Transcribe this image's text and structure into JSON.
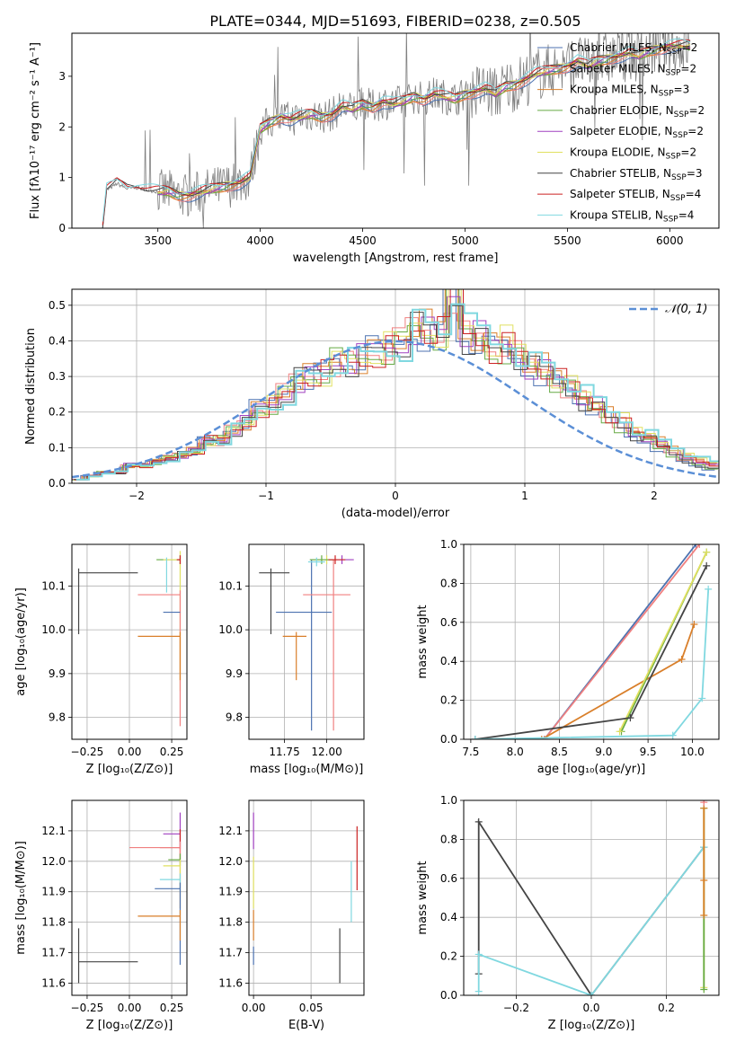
{
  "figure_title": "PLATE=0344, MJD=51693, FIBERID=0238, z=0.505",
  "colors": {
    "chabrier_miles": "#4c72b0",
    "salpeter_miles": "#f08080",
    "kroupa_miles": "#d97f2a",
    "chabrier_elodie": "#66aa44",
    "salpeter_elodie": "#a040c0",
    "kroupa_elodie": "#e0e060",
    "chabrier_stelib": "#444444",
    "salpeter_stelib": "#cc2222",
    "kroupa_stelib": "#80d8e0",
    "data": "#808080",
    "gaussian": "#5b8fd6"
  },
  "chart_data": [
    {
      "id": "spectrum",
      "type": "line",
      "title": "PLATE=0344, MJD=51693, FIBERID=0238, z=0.505",
      "xlabel": "wavelength [Angstrom, rest frame]",
      "ylabel": "Flux [fλ10⁻¹⁷ erg cm⁻² s⁻¹ A⁻¹]",
      "xlim": [
        3080,
        6240
      ],
      "ylim": [
        0,
        3.85
      ],
      "xticks": [
        "3500",
        "4000",
        "4500",
        "5000",
        "5500",
        "6000"
      ],
      "yticks": [
        "0",
        "1",
        "2",
        "3"
      ],
      "grid": false,
      "legend_position": "top-right",
      "legend": [
        {
          "label": "Chabrier MILES, N",
          "sub": "SSP",
          "suffix": "=2"
        },
        {
          "label": "Salpeter MILES, N",
          "sub": "SSP",
          "suffix": "=2"
        },
        {
          "label": "Kroupa MILES, N",
          "sub": "SSP",
          "suffix": "=3"
        },
        {
          "label": "Chabrier ELODIE, N",
          "sub": "SSP",
          "suffix": "=2"
        },
        {
          "label": "Salpeter ELODIE, N",
          "sub": "SSP",
          "suffix": "=2"
        },
        {
          "label": "Kroupa ELODIE, N",
          "sub": "SSP",
          "suffix": "=2"
        },
        {
          "label": "Chabrier STELIB, N",
          "sub": "SSP",
          "suffix": "=3"
        },
        {
          "label": "Salpeter STELIB, N",
          "sub": "SSP",
          "suffix": "=4"
        },
        {
          "label": "Kroupa STELIB, N",
          "sub": "SSP",
          "suffix": "=4"
        }
      ],
      "continuum": {
        "x": [
          3230,
          3250,
          3280,
          3300,
          3350,
          3400,
          3450,
          3500,
          3550,
          3600,
          3650,
          3700,
          3750,
          3800,
          3850,
          3900,
          3950,
          4000,
          4050,
          4100,
          4150,
          4200,
          4250,
          4300,
          4350,
          4400,
          4450,
          4500,
          4550,
          4600,
          4650,
          4700,
          4750,
          4800,
          4850,
          4900,
          4950,
          5000,
          5050,
          5100,
          5150,
          5200,
          5250,
          5300,
          5350,
          5400,
          5450,
          5500,
          5550,
          5600,
          5650,
          5700,
          5750,
          5800,
          5850,
          5900,
          5950,
          6000,
          6050,
          6100
        ],
        "y": [
          0,
          0.75,
          0.82,
          0.88,
          0.78,
          0.8,
          0.75,
          0.72,
          0.72,
          0.65,
          0.65,
          0.7,
          0.75,
          0.8,
          0.85,
          0.9,
          1.0,
          1.95,
          2.1,
          2.2,
          2.15,
          2.2,
          2.25,
          2.2,
          2.25,
          2.4,
          2.35,
          2.45,
          2.4,
          2.5,
          2.45,
          2.5,
          2.6,
          2.55,
          2.65,
          2.6,
          2.55,
          2.65,
          2.7,
          2.75,
          2.65,
          2.8,
          2.85,
          2.95,
          3.05,
          3.1,
          3.15,
          3.2,
          3.3,
          3.2,
          3.3,
          3.35,
          3.4,
          3.45,
          3.4,
          3.5,
          3.55,
          3.6,
          3.6,
          3.6
        ]
      }
    },
    {
      "id": "residuals",
      "type": "histogram",
      "xlabel": "(data-model)/error",
      "ylabel": "Normed distribution",
      "xlim": [
        -2.5,
        2.5
      ],
      "ylim": [
        0,
        0.545
      ],
      "xticks": [
        "−2",
        "−1",
        "0",
        "1",
        "2"
      ],
      "yticks": [
        "0.0",
        "0.1",
        "0.2",
        "0.3",
        "0.4",
        "0.5"
      ],
      "grid": true,
      "legend_position": "top-right",
      "legend": [
        {
          "label": "𝒩(0, 1)"
        }
      ],
      "bin_width": 0.1,
      "data_hist": [
        0.01,
        0.02,
        0.03,
        0.03,
        0.05,
        0.05,
        0.06,
        0.07,
        0.08,
        0.09,
        0.12,
        0.12,
        0.15,
        0.17,
        0.21,
        0.22,
        0.25,
        0.29,
        0.3,
        0.31,
        0.34,
        0.34,
        0.35,
        0.37,
        0.38,
        0.39,
        0.42,
        0.41,
        0.4,
        0.52,
        0.4,
        0.39,
        0.36,
        0.37,
        0.34,
        0.31,
        0.3,
        0.27,
        0.25,
        0.22,
        0.2,
        0.17,
        0.15,
        0.12,
        0.11,
        0.09,
        0.07,
        0.05,
        0.04,
        0.03
      ],
      "gaussian": {
        "mu": 0,
        "sigma": 1
      }
    },
    {
      "id": "age_vs_Z",
      "type": "scatter",
      "xlabel": "Z [log₁₀(Z/Z⊙)]",
      "ylabel": "age  [log₁₀(age/yr)]",
      "xlim": [
        -0.34,
        0.34
      ],
      "ylim": [
        9.75,
        10.195
      ],
      "xticks": [
        "−0.25",
        "0.00",
        "0.25"
      ],
      "yticks": [
        "9.8",
        "9.9",
        "10.0",
        "10.1"
      ],
      "points": [
        {
          "series": "chabrier_stelib",
          "x": -0.3,
          "y": 10.13,
          "xerr": [
            0,
            0.35
          ],
          "yerr": [
            0.14,
            0.01
          ]
        },
        {
          "series": "chabrier_elodie",
          "x": 0.3,
          "y": 10.16,
          "xerr": [
            0.14,
            0
          ],
          "yerr": [
            0.01,
            0.01
          ]
        },
        {
          "series": "kroupa_elodie",
          "x": 0.3,
          "y": 10.16,
          "xerr": [
            0.1,
            0
          ],
          "yerr": [
            0.3,
            0.02
          ]
        },
        {
          "series": "kroupa_stelib",
          "x": 0.22,
          "y": 10.155,
          "xerr": [
            0,
            0
          ],
          "yerr": [
            0.07,
            0.01
          ]
        },
        {
          "series": "salpeter_miles",
          "x": 0.3,
          "y": 10.08,
          "xerr": [
            0.25,
            0
          ],
          "yerr": [
            0.3,
            0.01
          ]
        },
        {
          "series": "chabrier_miles",
          "x": 0.3,
          "y": 10.04,
          "xerr": [
            0.1,
            0
          ],
          "yerr": [
            0,
            0
          ]
        },
        {
          "series": "kroupa_miles",
          "x": 0.3,
          "y": 9.985,
          "xerr": [
            0.25,
            0
          ],
          "yerr": [
            0.1,
            0.01
          ]
        },
        {
          "series": "salpeter_stelib",
          "x": 0.3,
          "y": 10.16,
          "xerr": [
            0.02,
            0
          ],
          "yerr": [
            0.01,
            0.01
          ]
        }
      ]
    },
    {
      "id": "age_vs_mass",
      "type": "scatter",
      "xlabel": "mass [log₁₀(M/M⊙)]",
      "ylabel": "",
      "xlim": [
        11.54,
        12.22
      ],
      "ylim": [
        9.75,
        10.195
      ],
      "xticks": [
        "11.75",
        "12.00"
      ],
      "yticks": [
        "9.8",
        "9.9",
        "10.0",
        "10.1"
      ],
      "points": [
        {
          "series": "chabrier_stelib",
          "x": 11.67,
          "y": 10.13,
          "xerr": [
            0.07,
            0.11
          ],
          "yerr": [
            0.14,
            0.01
          ]
        },
        {
          "series": "kroupa_miles",
          "x": 11.82,
          "y": 9.985,
          "xerr": [
            0.08,
            0.06
          ],
          "yerr": [
            0.1,
            0.01
          ]
        },
        {
          "series": "chabrier_miles",
          "x": 11.91,
          "y": 10.04,
          "xerr": [
            0.21,
            0.12
          ],
          "yerr": [
            0.27,
            0.12
          ]
        },
        {
          "series": "salpeter_miles",
          "x": 12.04,
          "y": 10.08,
          "xerr": [
            0.18,
            0.1
          ],
          "yerr": [
            0.31,
            0.08
          ]
        },
        {
          "series": "salpeter_elodie",
          "x": 12.09,
          "y": 10.16,
          "xerr": [
            0.1,
            0.07
          ],
          "yerr": [
            0.01,
            0.01
          ]
        },
        {
          "series": "kroupa_elodie",
          "x": 12.0,
          "y": 10.16,
          "xerr": [
            0.09,
            0.06
          ],
          "yerr": [
            0.01,
            0.01
          ]
        },
        {
          "series": "chabrier_elodie",
          "x": 11.97,
          "y": 10.16,
          "xerr": [
            0.07,
            0.07
          ],
          "yerr": [
            0.01,
            0.01
          ]
        },
        {
          "series": "kroupa_stelib",
          "x": 11.94,
          "y": 10.155,
          "xerr": [
            0.05,
            0.05
          ],
          "yerr": [
            0.01,
            0.01
          ]
        },
        {
          "series": "salpeter_stelib",
          "x": 12.05,
          "y": 10.16,
          "xerr": [
            0.04,
            0.06
          ],
          "yerr": [
            0.01,
            0.01
          ]
        }
      ]
    },
    {
      "id": "mass_weight_vs_age",
      "type": "line",
      "xlabel": "age  [log₁₀(age/yr)]",
      "ylabel": "mass weight",
      "xlim": [
        7.42,
        10.3
      ],
      "ylim": [
        0,
        1
      ],
      "xticks": [
        "7.5",
        "8.0",
        "8.5",
        "9.0",
        "9.5",
        "10.0"
      ],
      "yticks": [
        "0.0",
        "0.2",
        "0.4",
        "0.6",
        "0.8",
        "1.0"
      ],
      "grid": true,
      "series": [
        {
          "name": "chabrier_miles",
          "x": [
            8.33,
            10.04
          ],
          "y": [
            0,
            1.0
          ]
        },
        {
          "name": "salpeter_miles",
          "x": [
            8.33,
            10.08
          ],
          "y": [
            0,
            1.0
          ]
        },
        {
          "name": "kroupa_miles",
          "x": [
            8.3,
            9.88,
            10.02
          ],
          "y": [
            0,
            0.41,
            0.59
          ]
        },
        {
          "name": "chabrier_elodie",
          "x": [
            9.2,
            10.16
          ],
          "y": [
            0.04,
            0.96
          ]
        },
        {
          "name": "kroupa_elodie",
          "x": [
            9.18,
            10.16
          ],
          "y": [
            0.04,
            0.96
          ]
        },
        {
          "name": "chabrier_stelib",
          "x": [
            7.55,
            9.3,
            10.16
          ],
          "y": [
            0,
            0.11,
            0.89
          ]
        },
        {
          "name": "kroupa_stelib",
          "x": [
            7.55,
            9.78,
            10.11,
            10.18
          ],
          "y": [
            0,
            0.02,
            0.21,
            0.77
          ]
        }
      ]
    },
    {
      "id": "mass_vs_Z",
      "type": "scatter",
      "xlabel": "Z [log₁₀(Z/Z⊙)]",
      "ylabel": "mass [log₁₀(M/M⊙)]",
      "xlim": [
        -0.34,
        0.34
      ],
      "ylim": [
        11.56,
        12.2
      ],
      "xticks": [
        "−0.25",
        "0.00",
        "0.25"
      ],
      "yticks": [
        "11.6",
        "11.7",
        "11.8",
        "11.9",
        "12.0",
        "12.1"
      ],
      "points": [
        {
          "series": "chabrier_stelib",
          "x": -0.3,
          "y": 11.67,
          "xerr": [
            0,
            0.35
          ],
          "yerr": [
            0.07,
            0.11
          ]
        },
        {
          "series": "salpeter_elodie",
          "x": 0.3,
          "y": 12.09,
          "xerr": [
            0.1,
            0
          ],
          "yerr": [
            0.05,
            0.07
          ]
        },
        {
          "series": "salpeter_stelib",
          "x": 0.3,
          "y": 12.045,
          "xerr": [
            0.12,
            0
          ],
          "yerr": [
            0.04,
            0.06
          ]
        },
        {
          "series": "salpeter_miles",
          "x": 0.3,
          "y": 12.045,
          "xerr": [
            0.3,
            0
          ],
          "yerr": [
            0.2,
            0.02
          ]
        },
        {
          "series": "chabrier_elodie",
          "x": 0.3,
          "y": 12.005,
          "xerr": [
            0.07,
            0
          ],
          "yerr": [
            0.02,
            0.02
          ]
        },
        {
          "series": "kroupa_elodie",
          "x": 0.3,
          "y": 11.985,
          "xerr": [
            0.1,
            0
          ],
          "yerr": [
            0.14,
            0.02
          ]
        },
        {
          "series": "kroupa_stelib",
          "x": 0.3,
          "y": 11.94,
          "xerr": [
            0.12,
            0
          ],
          "yerr": [
            0.04,
            0.02
          ]
        },
        {
          "series": "chabrier_miles",
          "x": 0.3,
          "y": 11.91,
          "xerr": [
            0.15,
            0
          ],
          "yerr": [
            0.25,
            0.02
          ]
        },
        {
          "series": "kroupa_miles",
          "x": 0.3,
          "y": 11.82,
          "xerr": [
            0.25,
            0
          ],
          "yerr": [
            0.08,
            0.02
          ]
        }
      ]
    },
    {
      "id": "mass_vs_ebv",
      "type": "scatter",
      "xlabel": "E(B-V)",
      "ylabel": "",
      "xlim": [
        -0.004,
        0.096
      ],
      "ylim": [
        11.56,
        12.2
      ],
      "xticks": [
        "0.00",
        "0.05"
      ],
      "yticks": [
        "11.6",
        "11.7",
        "11.8",
        "11.9",
        "12.0",
        "12.1"
      ],
      "points": [
        {
          "series": "salpeter_elodie",
          "x": 0.0,
          "y": 12.09,
          "xerr": [
            0,
            0
          ],
          "yerr": [
            0.05,
            0.07
          ]
        },
        {
          "series": "kroupa_elodie",
          "x": 0.0,
          "y": 11.985,
          "xerr": [
            0,
            0
          ],
          "yerr": [
            0.14,
            0.03
          ]
        },
        {
          "series": "kroupa_miles",
          "x": 0.0,
          "y": 11.82,
          "xerr": [
            0,
            0
          ],
          "yerr": [
            0.08,
            0.02
          ]
        },
        {
          "series": "chabrier_miles",
          "x": 0.0,
          "y": 11.7,
          "xerr": [
            0,
            0
          ],
          "yerr": [
            0.04,
            0.02
          ]
        },
        {
          "series": "chabrier_stelib",
          "x": 0.075,
          "y": 11.67,
          "xerr": [
            0,
            0
          ],
          "yerr": [
            0.07,
            0.11
          ]
        },
        {
          "series": "kroupa_stelib",
          "x": 0.085,
          "y": 11.9,
          "xerr": [
            0,
            0
          ],
          "yerr": [
            0.1,
            0.1
          ]
        },
        {
          "series": "salpeter_stelib",
          "x": 0.09,
          "y": 12.005,
          "xerr": [
            0,
            0
          ],
          "yerr": [
            0.1,
            0.11
          ]
        }
      ]
    },
    {
      "id": "mass_weight_vs_Z",
      "type": "line",
      "xlabel": "Z [log₁₀(Z/Z⊙)]",
      "ylabel": "mass weight",
      "xlim": [
        -0.34,
        0.34
      ],
      "ylim": [
        0,
        1
      ],
      "xticks": [
        "−0.2",
        "0.0",
        "0.2"
      ],
      "yticks": [
        "0.0",
        "0.2",
        "0.4",
        "0.6",
        "0.8",
        "1.0"
      ],
      "grid": true,
      "series": [
        {
          "name": "chabrier_stelib",
          "x": [
            -0.3,
            -0.3,
            0.0,
            0.3
          ],
          "y": [
            0.11,
            0.89,
            0.0,
            0.76
          ]
        },
        {
          "name": "kroupa_stelib",
          "x": [
            -0.3,
            -0.3,
            0.0,
            0.3
          ],
          "y": [
            0.02,
            0.21,
            0.0,
            0.76
          ]
        },
        {
          "name": "kroupa_elodie",
          "x": [
            0.3,
            0.3
          ],
          "y": [
            0.04,
            0.96
          ]
        },
        {
          "name": "chabrier_elodie",
          "x": [
            0.3,
            0.3
          ],
          "y": [
            0.03,
            0.96
          ]
        },
        {
          "name": "kroupa_miles",
          "x": [
            0.3,
            0.3,
            0.3
          ],
          "y": [
            0.41,
            0.59,
            0.96
          ]
        },
        {
          "name": "salpeter_miles",
          "x": [
            0.3,
            0.3
          ],
          "y": [
            0.99,
            1.0
          ]
        }
      ]
    }
  ]
}
